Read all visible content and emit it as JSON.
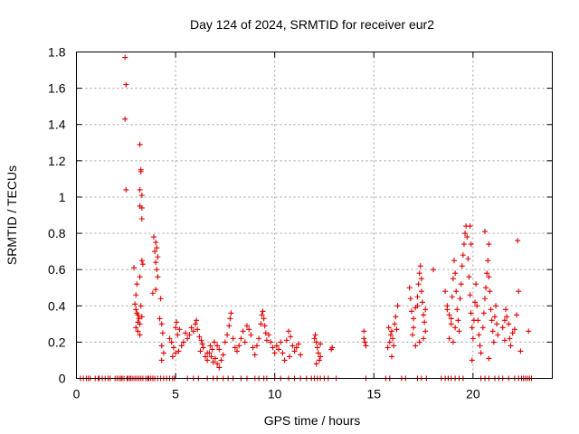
{
  "chart_data": {
    "type": "scatter",
    "title": "Day 124 of 2024, SRMTID for receiver eur2",
    "xlabel": "GPS time / hours",
    "ylabel": "SRMTID / TECUs",
    "xlim": [
      0,
      24
    ],
    "ylim": [
      0,
      1.8
    ],
    "xticks": [
      0,
      5,
      10,
      15,
      20
    ],
    "yticks": [
      0,
      0.2,
      0.4,
      0.6,
      0.8,
      1,
      1.2,
      1.4,
      1.6,
      1.8
    ],
    "xtick_labels": [
      "0",
      "5",
      "10",
      "15",
      "20"
    ],
    "ytick_labels": [
      "0",
      "0.2",
      "0.4",
      "0.6",
      "0.8",
      "1",
      "1.2",
      "1.4",
      "1.6",
      "1.8"
    ],
    "grid": true,
    "marker": "+",
    "color": "#e00000",
    "series": [
      {
        "name": "SRMTID",
        "points": [
          [
            2.45,
            1.77
          ],
          [
            2.5,
            1.62
          ],
          [
            2.45,
            1.43
          ],
          [
            2.5,
            1.04
          ],
          [
            3.2,
            1.29
          ],
          [
            3.25,
            1.15
          ],
          [
            3.25,
            1.14
          ],
          [
            3.2,
            1.04
          ],
          [
            3.3,
            1.01
          ],
          [
            3.2,
            0.95
          ],
          [
            3.3,
            0.94
          ],
          [
            3.3,
            0.88
          ],
          [
            2.9,
            0.61
          ],
          [
            3.3,
            0.65
          ],
          [
            3.35,
            0.63
          ],
          [
            3.2,
            0.56
          ],
          [
            3.05,
            0.52
          ],
          [
            3.0,
            0.46
          ],
          [
            2.95,
            0.41
          ],
          [
            3.0,
            0.38
          ],
          [
            3.05,
            0.36
          ],
          [
            3.1,
            0.35
          ],
          [
            3.15,
            0.33
          ],
          [
            3.1,
            0.31
          ],
          [
            3.2,
            0.3
          ],
          [
            3.0,
            0.28
          ],
          [
            3.1,
            0.26
          ],
          [
            3.2,
            0.24
          ],
          [
            3.25,
            0.4
          ],
          [
            3.3,
            0.34
          ],
          [
            3.9,
            0.78
          ],
          [
            4.0,
            0.75
          ],
          [
            4.05,
            0.72
          ],
          [
            3.95,
            0.7
          ],
          [
            4.1,
            0.67
          ],
          [
            4.0,
            0.64
          ],
          [
            4.05,
            0.6
          ],
          [
            4.1,
            0.56
          ],
          [
            3.85,
            0.47
          ],
          [
            4.0,
            0.49
          ],
          [
            4.25,
            0.44
          ],
          [
            4.2,
            0.33
          ],
          [
            4.3,
            0.3
          ],
          [
            4.35,
            0.25
          ],
          [
            4.3,
            0.18
          ],
          [
            4.4,
            0.14
          ],
          [
            4.3,
            0.1
          ],
          [
            4.7,
            0.22
          ],
          [
            4.8,
            0.2
          ],
          [
            4.9,
            0.17
          ],
          [
            5.0,
            0.14
          ],
          [
            4.85,
            0.12
          ],
          [
            5.1,
            0.24
          ],
          [
            5.2,
            0.27
          ],
          [
            5.0,
            0.28
          ],
          [
            5.05,
            0.31
          ],
          [
            5.3,
            0.18
          ],
          [
            5.15,
            0.15
          ],
          [
            5.4,
            0.2
          ],
          [
            5.5,
            0.25
          ],
          [
            5.6,
            0.22
          ],
          [
            5.7,
            0.24
          ],
          [
            5.8,
            0.28
          ],
          [
            5.9,
            0.26
          ],
          [
            6.0,
            0.3
          ],
          [
            6.05,
            0.32
          ],
          [
            6.1,
            0.27
          ],
          [
            6.2,
            0.23
          ],
          [
            6.3,
            0.21
          ],
          [
            6.35,
            0.19
          ],
          [
            6.25,
            0.15
          ],
          [
            6.4,
            0.17
          ],
          [
            6.5,
            0.12
          ],
          [
            6.6,
            0.1
          ],
          [
            6.7,
            0.14
          ],
          [
            6.8,
            0.12
          ],
          [
            6.9,
            0.09
          ],
          [
            7.0,
            0.11
          ],
          [
            7.1,
            0.08
          ],
          [
            7.2,
            0.06
          ],
          [
            7.3,
            0.1
          ],
          [
            7.4,
            0.13
          ],
          [
            7.2,
            0.16
          ],
          [
            7.1,
            0.18
          ],
          [
            6.95,
            0.2
          ],
          [
            6.85,
            0.16
          ],
          [
            6.75,
            0.18
          ],
          [
            6.6,
            0.14
          ],
          [
            7.5,
            0.2
          ],
          [
            7.6,
            0.24
          ],
          [
            7.7,
            0.29
          ],
          [
            7.75,
            0.33
          ],
          [
            7.8,
            0.36
          ],
          [
            7.9,
            0.22
          ],
          [
            8.0,
            0.17
          ],
          [
            8.1,
            0.15
          ],
          [
            8.2,
            0.18
          ],
          [
            8.3,
            0.22
          ],
          [
            8.4,
            0.26
          ],
          [
            8.5,
            0.2
          ],
          [
            8.6,
            0.29
          ],
          [
            8.7,
            0.27
          ],
          [
            8.8,
            0.24
          ],
          [
            8.9,
            0.17
          ],
          [
            9.0,
            0.13
          ],
          [
            9.1,
            0.18
          ],
          [
            9.2,
            0.22
          ],
          [
            9.3,
            0.3
          ],
          [
            9.35,
            0.35
          ],
          [
            9.4,
            0.37
          ],
          [
            9.45,
            0.33
          ],
          [
            9.5,
            0.29
          ],
          [
            9.55,
            0.25
          ],
          [
            9.6,
            0.21
          ],
          [
            9.7,
            0.24
          ],
          [
            9.8,
            0.2
          ],
          [
            9.9,
            0.17
          ],
          [
            10.0,
            0.14
          ],
          [
            10.1,
            0.18
          ],
          [
            10.2,
            0.16
          ],
          [
            10.3,
            0.2
          ],
          [
            10.4,
            0.14
          ],
          [
            10.5,
            0.1
          ],
          [
            10.6,
            0.21
          ],
          [
            10.7,
            0.26
          ],
          [
            10.8,
            0.23
          ],
          [
            10.9,
            0.18
          ],
          [
            11.0,
            0.15
          ],
          [
            11.1,
            0.17
          ],
          [
            11.2,
            0.19
          ],
          [
            11.3,
            0.13
          ],
          [
            10.75,
            0.12
          ],
          [
            12.0,
            0.22
          ],
          [
            12.05,
            0.24
          ],
          [
            12.1,
            0.2
          ],
          [
            12.15,
            0.17
          ],
          [
            12.2,
            0.14
          ],
          [
            12.3,
            0.12
          ],
          [
            12.25,
            0.1
          ],
          [
            12.1,
            0.08
          ],
          [
            12.3,
            0.19
          ],
          [
            12.85,
            0.16
          ],
          [
            12.9,
            0.17
          ],
          [
            14.5,
            0.26
          ],
          [
            14.5,
            0.22
          ],
          [
            14.55,
            0.2
          ],
          [
            14.6,
            0.18
          ],
          [
            15.7,
            0.17
          ],
          [
            15.8,
            0.2
          ],
          [
            15.85,
            0.24
          ],
          [
            15.9,
            0.26
          ],
          [
            15.95,
            0.22
          ],
          [
            16.0,
            0.18
          ],
          [
            16.05,
            0.3
          ],
          [
            16.1,
            0.34
          ],
          [
            16.15,
            0.27
          ],
          [
            16.2,
            0.4
          ],
          [
            15.75,
            0.28
          ],
          [
            15.9,
            0.12
          ],
          [
            16.8,
            0.5
          ],
          [
            16.85,
            0.44
          ],
          [
            16.9,
            0.37
          ],
          [
            17.0,
            0.33
          ],
          [
            17.1,
            0.39
          ],
          [
            17.2,
            0.45
          ],
          [
            17.25,
            0.52
          ],
          [
            17.3,
            0.58
          ],
          [
            17.35,
            0.62
          ],
          [
            17.4,
            0.48
          ],
          [
            17.45,
            0.42
          ],
          [
            17.5,
            0.35
          ],
          [
            17.55,
            0.31
          ],
          [
            17.6,
            0.26
          ],
          [
            17.5,
            0.22
          ],
          [
            17.3,
            0.2
          ],
          [
            17.1,
            0.18
          ],
          [
            16.95,
            0.24
          ],
          [
            17.0,
            0.28
          ],
          [
            17.2,
            0.4
          ],
          [
            17.4,
            0.55
          ],
          [
            17.6,
            0.38
          ],
          [
            18.0,
            0.6
          ],
          [
            18.6,
            0.48
          ],
          [
            18.7,
            0.4
          ],
          [
            18.8,
            0.35
          ],
          [
            18.9,
            0.3
          ],
          [
            18.95,
            0.45
          ],
          [
            19.0,
            0.55
          ],
          [
            19.05,
            0.65
          ],
          [
            19.1,
            0.58
          ],
          [
            19.15,
            0.48
          ],
          [
            19.2,
            0.38
          ],
          [
            19.25,
            0.32
          ],
          [
            19.3,
            0.26
          ],
          [
            19.35,
            0.44
          ],
          [
            19.4,
            0.52
          ],
          [
            19.45,
            0.62
          ],
          [
            19.5,
            0.68
          ],
          [
            19.55,
            0.74
          ],
          [
            19.6,
            0.8
          ],
          [
            19.65,
            0.84
          ],
          [
            19.7,
            0.78
          ],
          [
            19.75,
            0.66
          ],
          [
            19.8,
            0.56
          ],
          [
            19.85,
            0.46
          ],
          [
            19.9,
            0.36
          ],
          [
            19.95,
            0.28
          ],
          [
            20.0,
            0.22
          ],
          [
            20.05,
            0.32
          ],
          [
            20.1,
            0.42
          ],
          [
            20.15,
            0.52
          ],
          [
            20.2,
            0.4
          ],
          [
            20.25,
            0.32
          ],
          [
            20.3,
            0.24
          ],
          [
            20.35,
            0.18
          ],
          [
            20.4,
            0.14
          ],
          [
            20.5,
            0.28
          ],
          [
            20.55,
            0.36
          ],
          [
            20.6,
            0.44
          ],
          [
            20.65,
            0.5
          ],
          [
            20.7,
            0.58
          ],
          [
            20.75,
            0.65
          ],
          [
            20.8,
            0.56
          ],
          [
            20.85,
            0.48
          ],
          [
            20.9,
            0.38
          ],
          [
            20.95,
            0.32
          ],
          [
            21.0,
            0.26
          ],
          [
            21.05,
            0.2
          ],
          [
            21.1,
            0.34
          ],
          [
            21.15,
            0.4
          ],
          [
            21.2,
            0.3
          ],
          [
            21.25,
            0.24
          ],
          [
            19.85,
            0.84
          ],
          [
            20.6,
            0.81
          ],
          [
            20.8,
            0.74
          ],
          [
            19.9,
            0.74
          ],
          [
            18.8,
            0.22
          ],
          [
            19.0,
            0.2
          ],
          [
            19.95,
            0.1
          ],
          [
            20.8,
            0.11
          ],
          [
            18.7,
            0.38
          ],
          [
            18.9,
            0.33
          ],
          [
            19.1,
            0.28
          ],
          [
            21.5,
            0.28
          ],
          [
            21.6,
            0.32
          ],
          [
            21.65,
            0.38
          ],
          [
            21.7,
            0.34
          ],
          [
            21.8,
            0.3
          ],
          [
            21.85,
            0.22
          ],
          [
            21.9,
            0.18
          ],
          [
            22.0,
            0.25
          ],
          [
            22.1,
            0.27
          ],
          [
            22.2,
            0.35
          ],
          [
            22.3,
            0.48
          ],
          [
            22.25,
            0.76
          ],
          [
            22.4,
            0.15
          ],
          [
            22.8,
            0.26
          ],
          [
            21.6,
            0.21
          ]
        ]
      }
    ],
    "zero_points_x": [
      0.2,
      0.35,
      0.5,
      0.6,
      0.7,
      0.95,
      1.1,
      1.15,
      1.3,
      1.45,
      1.6,
      1.7,
      1.95,
      2.05,
      2.15,
      2.25,
      2.3,
      2.4,
      2.55,
      2.6,
      2.7,
      2.75,
      2.85,
      2.95,
      3.05,
      3.15,
      3.25,
      3.35,
      3.5,
      3.6,
      3.65,
      3.75,
      3.85,
      3.95,
      4.1,
      4.25,
      4.4,
      4.55,
      4.7,
      4.85,
      4.95,
      5.6,
      5.9,
      6.15,
      6.6,
      6.9,
      7.1,
      7.4,
      7.65,
      7.9,
      8.3,
      8.6,
      9.0,
      9.2,
      9.45,
      9.6,
      10.0,
      10.3,
      10.7,
      11.0,
      11.3,
      11.6,
      11.85,
      12.0,
      12.15,
      12.3,
      12.5,
      12.7,
      13.1,
      14.6,
      15.6,
      15.8,
      16.4,
      16.6,
      17.2,
      17.4,
      17.65,
      18.4,
      18.6,
      18.75,
      18.9,
      19.1,
      19.3,
      19.5,
      20.4,
      20.6,
      20.8,
      21.1,
      21.3,
      21.5,
      21.8,
      22.1,
      22.3,
      22.45,
      22.55,
      22.65,
      22.75,
      22.85,
      22.95
    ]
  }
}
